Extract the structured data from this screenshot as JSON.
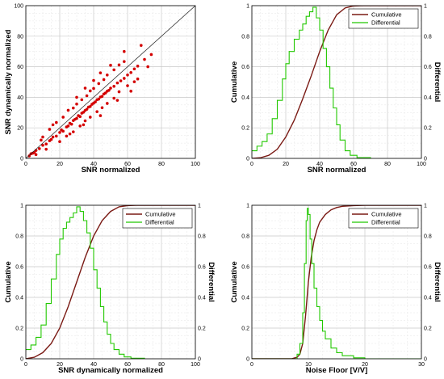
{
  "chart_data": [
    {
      "type": "scatter",
      "xlabel": "SNR normalized",
      "ylabel": "SNR dynamically normalized",
      "xlim": [
        0,
        100
      ],
      "ylim": [
        0,
        100
      ],
      "xticks": [
        "0",
        "20",
        "40",
        "60",
        "80",
        "100"
      ],
      "yticks": [
        "0",
        "20",
        "40",
        "60",
        "80",
        "100"
      ],
      "grid": true,
      "point_color": "#d40000",
      "reference_line": [
        [
          0,
          0
        ],
        [
          100,
          100
        ]
      ],
      "points": [
        [
          2,
          1.6
        ],
        [
          4,
          3.4
        ],
        [
          5,
          3.8
        ],
        [
          6,
          5.2
        ],
        [
          8,
          6.4
        ],
        [
          10,
          8.6
        ],
        [
          12,
          9.4
        ],
        [
          14,
          11.6
        ],
        [
          15,
          12.4
        ],
        [
          16,
          14
        ],
        [
          18,
          14.6
        ],
        [
          20,
          17
        ],
        [
          21,
          18.6
        ],
        [
          22,
          17.8
        ],
        [
          24,
          20.6
        ],
        [
          25,
          21.2
        ],
        [
          26,
          23
        ],
        [
          27,
          22.4
        ],
        [
          28,
          24.8
        ],
        [
          29,
          25.6
        ],
        [
          30,
          26.2
        ],
        [
          31,
          28
        ],
        [
          32,
          27.4
        ],
        [
          33,
          29.6
        ],
        [
          34,
          30.2
        ],
        [
          35,
          31.4
        ],
        [
          36,
          32.2
        ],
        [
          37,
          33.6
        ],
        [
          38,
          34
        ],
        [
          39,
          35.4
        ],
        [
          40,
          36.2
        ],
        [
          41,
          37
        ],
        [
          42,
          38.4
        ],
        [
          43,
          38.8
        ],
        [
          44,
          40.2
        ],
        [
          45,
          40.6
        ],
        [
          46,
          42.2
        ],
        [
          47,
          42.8
        ],
        [
          48,
          44
        ],
        [
          49,
          44.6
        ],
        [
          50,
          46
        ],
        [
          52,
          47.2
        ],
        [
          54,
          49.4
        ],
        [
          56,
          50.8
        ],
        [
          58,
          52.4
        ],
        [
          60,
          54.6
        ],
        [
          62,
          56.2
        ],
        [
          64,
          58.6
        ],
        [
          66,
          60.4
        ],
        [
          70,
          64.8
        ],
        [
          10,
          14
        ],
        [
          14,
          19
        ],
        [
          18,
          23.5
        ],
        [
          22,
          27
        ],
        [
          25,
          31.5
        ],
        [
          28,
          33
        ],
        [
          30,
          35.6
        ],
        [
          33,
          38.4
        ],
        [
          36,
          41
        ],
        [
          38,
          44.2
        ],
        [
          40,
          45.8
        ],
        [
          43,
          49
        ],
        [
          46,
          51.6
        ],
        [
          48,
          54.6
        ],
        [
          52,
          58
        ],
        [
          55,
          61.2
        ],
        [
          58,
          63.4
        ],
        [
          20,
          11
        ],
        [
          24,
          14.6
        ],
        [
          28,
          17.4
        ],
        [
          32,
          21.2
        ],
        [
          35,
          24.6
        ],
        [
          38,
          27
        ],
        [
          42,
          30.6
        ],
        [
          45,
          33.2
        ],
        [
          48,
          36
        ],
        [
          52,
          39.4
        ],
        [
          55,
          43.6
        ],
        [
          60,
          47.6
        ],
        [
          64,
          50.2
        ],
        [
          30,
          40
        ],
        [
          35,
          46
        ],
        [
          40,
          51
        ],
        [
          44,
          56
        ],
        [
          50,
          61
        ],
        [
          26,
          16
        ],
        [
          34,
          22
        ],
        [
          44,
          28
        ],
        [
          54,
          38
        ],
        [
          62,
          44
        ],
        [
          16,
          22
        ],
        [
          12,
          6
        ],
        [
          58,
          70
        ],
        [
          66,
          52
        ],
        [
          72,
          60
        ],
        [
          68,
          74
        ],
        [
          74,
          68
        ],
        [
          9,
          12
        ],
        [
          6,
          2.5
        ],
        [
          3,
          3
        ]
      ]
    },
    {
      "type": "line",
      "xlabel": "SNR normalized",
      "ylabel_left": "Cumulative",
      "ylabel_right": "Differential",
      "xlim": [
        0,
        100
      ],
      "ylim": [
        0,
        1
      ],
      "xticks": [
        "0",
        "20",
        "40",
        "60",
        "80",
        "100"
      ],
      "yticks": [
        "0",
        "0.2",
        "0.4",
        "0.6",
        "0.8",
        "1"
      ],
      "legend": "top-right",
      "series": [
        {
          "name": "Cumulative",
          "color": "#7a1a14",
          "x": [
            0,
            5,
            10,
            15,
            20,
            25,
            30,
            35,
            40,
            45,
            50,
            55,
            60,
            65,
            70,
            100
          ],
          "y": [
            0,
            0.004,
            0.02,
            0.06,
            0.14,
            0.25,
            0.39,
            0.54,
            0.7,
            0.84,
            0.94,
            0.985,
            0.998,
            1,
            1,
            1
          ]
        },
        {
          "name": "Differential",
          "color": "#22c800",
          "x": [
            0,
            3,
            6,
            9,
            12,
            15,
            18,
            20,
            22,
            25,
            28,
            30,
            32,
            34,
            36,
            38,
            40,
            42,
            44,
            46,
            48,
            50,
            52,
            55,
            58,
            62,
            70
          ],
          "y": [
            0.05,
            0.08,
            0.11,
            0.16,
            0.26,
            0.38,
            0.52,
            0.62,
            0.7,
            0.78,
            0.84,
            0.88,
            0.93,
            0.96,
            0.99,
            0.92,
            0.84,
            0.72,
            0.6,
            0.46,
            0.33,
            0.22,
            0.12,
            0.05,
            0.02,
            0.005,
            0
          ]
        }
      ]
    },
    {
      "type": "line",
      "xlabel": "SNR dynamically normalized",
      "ylabel_left": "Cumulative",
      "ylabel_right": "Differential",
      "xlim": [
        0,
        100
      ],
      "ylim": [
        0,
        1
      ],
      "xticks": [
        "0",
        "20",
        "40",
        "60",
        "80",
        "100"
      ],
      "yticks": [
        "0",
        "0.2",
        "0.4",
        "0.6",
        "0.8",
        "1"
      ],
      "legend": "top-right",
      "series": [
        {
          "name": "Cumulative",
          "color": "#7a1a14",
          "x": [
            0,
            5,
            10,
            15,
            20,
            25,
            30,
            35,
            40,
            45,
            50,
            55,
            60,
            65,
            70,
            100
          ],
          "y": [
            0,
            0.01,
            0.04,
            0.1,
            0.2,
            0.34,
            0.5,
            0.66,
            0.8,
            0.9,
            0.96,
            0.99,
            0.998,
            1,
            1,
            1
          ]
        },
        {
          "name": "Differential",
          "color": "#22c800",
          "x": [
            0,
            3,
            6,
            9,
            12,
            15,
            18,
            20,
            22,
            24,
            26,
            28,
            30,
            32,
            34,
            36,
            38,
            40,
            42,
            44,
            46,
            48,
            50,
            52,
            55,
            58,
            62,
            70
          ],
          "y": [
            0.06,
            0.09,
            0.14,
            0.22,
            0.36,
            0.52,
            0.68,
            0.78,
            0.85,
            0.89,
            0.92,
            0.95,
            0.99,
            0.96,
            0.9,
            0.82,
            0.72,
            0.58,
            0.46,
            0.34,
            0.24,
            0.16,
            0.1,
            0.06,
            0.03,
            0.012,
            0.004,
            0
          ]
        }
      ]
    },
    {
      "type": "line",
      "xlabel": "Noise Floor [V/V]",
      "ylabel_left": "Cumulative",
      "ylabel_right": "Differential",
      "xlim": [
        0,
        30
      ],
      "ylim": [
        0,
        1
      ],
      "xticks": [
        "0",
        "10",
        "20",
        "30"
      ],
      "yticks": [
        "0",
        "0.2",
        "0.4",
        "0.6",
        "0.8",
        "1"
      ],
      "legend": "top-right",
      "series": [
        {
          "name": "Cumulative",
          "color": "#7a1a14",
          "x": [
            0,
            7,
            8,
            8.5,
            9,
            9.5,
            10,
            10.5,
            11,
            11.5,
            12,
            13,
            14,
            15,
            16,
            18,
            20,
            30
          ],
          "y": [
            0,
            0,
            0.01,
            0.03,
            0.1,
            0.28,
            0.5,
            0.66,
            0.77,
            0.84,
            0.89,
            0.94,
            0.97,
            0.985,
            0.993,
            0.998,
            1,
            1
          ]
        },
        {
          "name": "Differential",
          "color": "#22c800",
          "x": [
            0,
            7,
            8,
            8.5,
            9,
            9.3,
            9.6,
            9.8,
            10,
            10.3,
            10.6,
            11,
            11.5,
            12,
            12.5,
            13,
            14,
            15,
            16,
            18,
            20,
            30
          ],
          "y": [
            0,
            0,
            0.03,
            0.1,
            0.3,
            0.62,
            0.9,
            0.98,
            0.94,
            0.78,
            0.62,
            0.46,
            0.34,
            0.25,
            0.18,
            0.13,
            0.07,
            0.04,
            0.02,
            0.006,
            0,
            0
          ]
        }
      ]
    }
  ]
}
